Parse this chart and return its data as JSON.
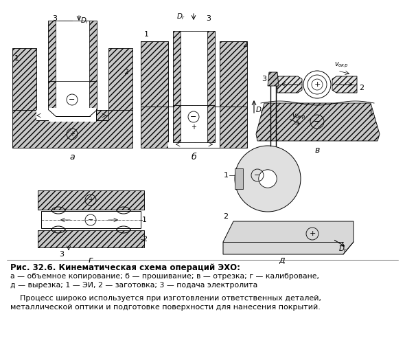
{
  "bg_color": "#ffffff",
  "title_bold": "Рис. 32.6. Кинематическая схема операций ЭХО:",
  "caption_line1": "а — объемное копирование; б — прошивание; в — отрезка; г — калиброване,",
  "caption_line2": "д — вырезка; 1 — ЭИ, 2 — заготовка; 3 — подача электролита",
  "body_line1": "    Процесс широко используется при изготовлении ответственных деталей,",
  "body_line2": "металлической оптики и подготовке поверхности для нанесения покрытий.",
  "label_a": "а",
  "label_b": "б",
  "label_v": "в",
  "label_g": "г",
  "label_d": "д"
}
